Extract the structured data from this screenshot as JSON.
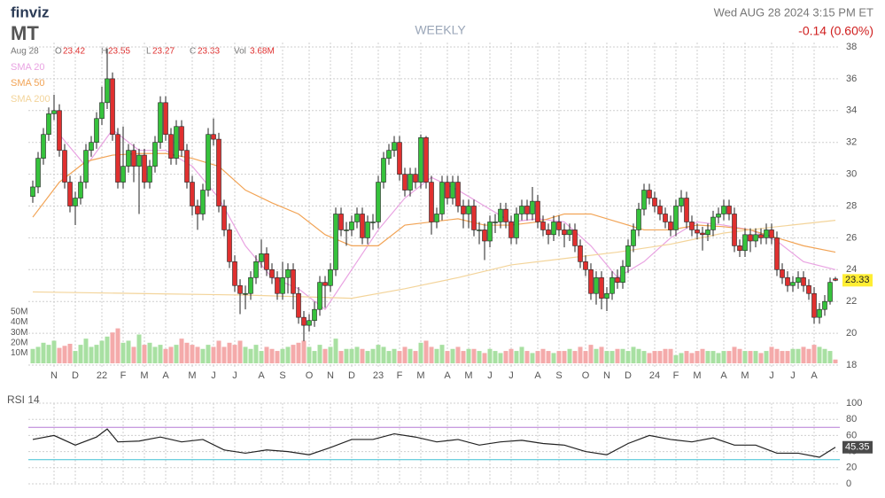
{
  "header": {
    "logo": "finviz",
    "ticker": "MT",
    "date": "Aug 28",
    "o": "O",
    "h": "H",
    "l": "L",
    "c": "C",
    "vol_label": "Vol",
    "vol": "3.68M",
    "timeframe": "WEEKLY",
    "datetime": "Wed AUG 28 2024 3:15 PM ET",
    "change": "-0.14 (0.60%)"
  },
  "chart_data": [
    {
      "type": "candlestick",
      "up_color": "#36c23c",
      "down_color": "#e0302f",
      "grid": true,
      "categories": [
        null,
        null,
        null,
        null,
        "N",
        null,
        null,
        null,
        "D",
        null,
        null,
        null,
        null,
        "22",
        null,
        null,
        null,
        "F",
        null,
        null,
        null,
        "M",
        null,
        null,
        null,
        "A",
        null,
        null,
        null,
        null,
        "M",
        null,
        null,
        null,
        "J",
        null,
        null,
        null,
        "J",
        null,
        null,
        null,
        null,
        "A",
        null,
        null,
        null,
        "S",
        null,
        null,
        null,
        null,
        "O",
        null,
        null,
        null,
        "N",
        null,
        null,
        null,
        "D",
        null,
        null,
        null,
        null,
        "23",
        null,
        null,
        null,
        "F",
        null,
        null,
        null,
        "M",
        null,
        null,
        null,
        null,
        "A",
        null,
        null,
        null,
        "M",
        null,
        null,
        null,
        "J",
        null,
        null,
        null,
        "J",
        null,
        null,
        null,
        null,
        "A",
        null,
        null,
        null,
        "S",
        null,
        null,
        null,
        null,
        "O",
        null,
        null,
        null,
        "N",
        null,
        null,
        null,
        "D",
        null,
        null,
        null,
        null,
        "24",
        null,
        null,
        null,
        "F",
        null,
        null,
        null,
        "M",
        null,
        null,
        null,
        null,
        "A",
        null,
        null,
        null,
        "M",
        null,
        null,
        null,
        null,
        "J",
        null,
        null,
        null,
        "J",
        null,
        null,
        null,
        "A",
        null,
        null,
        null,
        null
      ],
      "open": [
        28.6,
        29.2,
        31,
        32.5,
        33.8,
        34,
        31.5,
        29.5,
        28,
        28.5,
        29.5,
        31.5,
        32,
        33.5,
        34.5,
        36,
        32.5,
        29.5,
        30.5,
        31.5,
        30.5,
        31.2,
        29.5,
        30.5,
        32,
        34.5,
        32.5,
        31,
        33,
        31.5,
        29.5,
        28,
        27.5,
        29,
        32.5,
        32.2,
        28,
        26.5,
        24.5,
        23,
        22.5,
        22.5,
        23.5,
        24.5,
        25,
        24,
        23.5,
        22.5,
        23.5,
        24,
        22.5,
        21,
        20.5,
        20.8,
        21.5,
        23.2,
        23,
        24,
        27.5,
        26.5,
        26.5,
        27,
        27.5,
        26,
        27,
        27,
        29.5,
        31,
        31.5,
        32,
        30,
        29,
        30,
        29.5,
        32.3,
        29.5,
        27,
        27.5,
        29.5,
        28.5,
        29.5,
        28,
        27.5,
        28,
        26.5,
        26.5,
        25.8,
        27,
        27,
        27.8,
        27,
        26,
        27.5,
        28,
        27.5,
        28.3,
        27,
        26.5,
        26.2,
        27,
        26.5,
        26.2,
        26.5,
        25.5,
        24.5,
        24,
        22.5,
        23.5,
        22.2,
        22.5,
        23.5,
        23.2,
        24.2,
        25.5,
        26.5,
        27.8,
        29,
        28.5,
        28,
        27.5,
        27,
        26.5,
        28,
        28.5,
        27,
        26.5,
        26.3,
        26.2,
        26.5,
        27.3,
        27.5,
        28,
        27.5,
        25.5,
        25.2,
        26.2,
        25.8,
        26.2,
        26,
        26.5,
        26,
        24,
        23.5,
        23,
        23.2,
        23.5,
        23,
        22.5,
        21,
        21.5,
        22,
        23.42
      ],
      "high": [
        29.6,
        31.4,
        32.9,
        34.2,
        35,
        34.4,
        31.9,
        29.9,
        28.9,
        29.9,
        31.9,
        32.4,
        33.9,
        35.5,
        37.9,
        36.4,
        32.9,
        33,
        31.9,
        31.9,
        31.6,
        31.6,
        30.9,
        32.4,
        34.9,
        34.9,
        32.9,
        33.4,
        33.4,
        31.9,
        29.9,
        28.4,
        29.4,
        32.9,
        33.5,
        32.6,
        28.4,
        26.9,
        24.9,
        23.4,
        23,
        23.9,
        24.9,
        25.9,
        25.4,
        24.4,
        23.9,
        24.5,
        24.4,
        24.4,
        22.9,
        21.4,
        21.2,
        22,
        23.6,
        23.6,
        24.4,
        27.9,
        27.9,
        27,
        27.4,
        27.9,
        27.9,
        27.4,
        27.5,
        29.9,
        31.4,
        31.9,
        32.4,
        32.4,
        30.4,
        30.4,
        30.4,
        32.5,
        32.4,
        29.9,
        27.9,
        29.9,
        29.9,
        29.9,
        29.9,
        28.4,
        28.4,
        28.4,
        27,
        26.9,
        27.4,
        27.5,
        28.2,
        28.2,
        27.4,
        27.9,
        28.4,
        28.4,
        29.2,
        28.7,
        27.4,
        26.9,
        27.4,
        27.4,
        26.9,
        26.9,
        26.9,
        25.9,
        24.9,
        24.4,
        23.9,
        23.9,
        22.9,
        23.9,
        24,
        24.6,
        25.9,
        26.9,
        28.2,
        29.4,
        29.4,
        28.9,
        28.4,
        27.9,
        27.4,
        28.4,
        29,
        28.9,
        27.4,
        26.9,
        26.7,
        26.9,
        27.7,
        27.9,
        28.4,
        28.4,
        27.9,
        25.9,
        26.6,
        26.6,
        26.6,
        26.6,
        26.9,
        26.9,
        26.4,
        24.4,
        23.9,
        23.6,
        23.9,
        23.9,
        23.4,
        22.9,
        21.9,
        22.4,
        23.5,
        23.55
      ],
      "low": [
        28.2,
        28.8,
        30.6,
        32.1,
        33.4,
        31.1,
        29.1,
        27.6,
        26.8,
        28.1,
        29.1,
        31.1,
        31.6,
        33.1,
        34.1,
        32.1,
        29.1,
        29.1,
        30.1,
        29.5,
        27.5,
        29.1,
        29.1,
        30.1,
        31.6,
        32.1,
        30.6,
        30.6,
        31.1,
        29.1,
        27.4,
        26.5,
        27.1,
        28.6,
        31.8,
        27.6,
        26.1,
        24.1,
        22.6,
        21.2,
        21.5,
        22.1,
        23.1,
        24.1,
        23.6,
        23.1,
        22.1,
        22.1,
        22.5,
        21.5,
        20.6,
        19.5,
        20.1,
        20.4,
        21.1,
        21.6,
        22.6,
        23.6,
        26.1,
        25.5,
        26.1,
        26.6,
        25.6,
        25.6,
        26.5,
        26.6,
        29.1,
        30.6,
        31.1,
        29.6,
        28.6,
        28.6,
        29.1,
        29.1,
        29.1,
        26.2,
        26.6,
        27.1,
        28.1,
        28.1,
        27.6,
        26.6,
        26.6,
        26.1,
        25.6,
        24.6,
        25.4,
        26.3,
        26.6,
        26.6,
        25.6,
        25.6,
        27.1,
        27.1,
        27.1,
        26.6,
        26.1,
        25.6,
        25.8,
        26.1,
        25.4,
        25.8,
        25.1,
        24.1,
        23.6,
        22.1,
        21.8,
        21.5,
        21.4,
        22.1,
        22.8,
        22.8,
        23.8,
        25.1,
        26.1,
        27.4,
        28.1,
        27.6,
        27.1,
        26.6,
        26.1,
        26.1,
        27.6,
        26.6,
        26.1,
        25.9,
        25.2,
        25.8,
        26.1,
        26.9,
        27.1,
        27.1,
        25.1,
        24.8,
        24.8,
        25.1,
        25.4,
        25.6,
        25.6,
        25.6,
        23.6,
        23.1,
        22.6,
        22.6,
        22.8,
        22.6,
        22.1,
        20.6,
        20.6,
        21.1,
        21.8,
        23.27
      ],
      "close": [
        29.2,
        31,
        32.5,
        33.8,
        34,
        31.5,
        29.5,
        28,
        28.5,
        29.5,
        31.5,
        32,
        33.5,
        34.5,
        36,
        32.5,
        29.5,
        30.5,
        31.5,
        30.5,
        31.2,
        29.5,
        30.5,
        32,
        34.5,
        32.5,
        31,
        33,
        31.5,
        29.5,
        28,
        27.5,
        29,
        32.5,
        32.2,
        28,
        26.5,
        24.5,
        23,
        22.5,
        22.5,
        23.5,
        24.5,
        25,
        24,
        23.5,
        22.5,
        23.5,
        24,
        22.5,
        21,
        20.5,
        20.8,
        21.5,
        23.2,
        23,
        24,
        27.5,
        26.5,
        26.5,
        27,
        27.5,
        26,
        27,
        27,
        29.5,
        31,
        31.5,
        32,
        30,
        29,
        30,
        29.5,
        32.3,
        29.5,
        27,
        27.5,
        29.5,
        28.5,
        29.5,
        28,
        27.5,
        28,
        26.5,
        26.5,
        25.8,
        27,
        27,
        27.8,
        27,
        26,
        27.5,
        28,
        27.5,
        28.3,
        27,
        26.5,
        26.2,
        27,
        26.5,
        26.2,
        26.5,
        25.5,
        24.5,
        24,
        22.5,
        23.5,
        22.2,
        22.5,
        23.5,
        23.2,
        24.2,
        25.5,
        26.5,
        27.8,
        29,
        28.5,
        28,
        27.5,
        27,
        26.5,
        28,
        28.5,
        27,
        26.5,
        26.3,
        26.2,
        26.5,
        27.3,
        27.5,
        28,
        27.5,
        25.5,
        25.2,
        26.2,
        25.8,
        26.2,
        26,
        26.5,
        26,
        24,
        23.5,
        23,
        23.2,
        23.5,
        23,
        22.5,
        21,
        21.5,
        22,
        23.2,
        23.33
      ],
      "ylim": [
        18,
        38
      ],
      "yticks": [
        18,
        20,
        22,
        24,
        26,
        28,
        30,
        32,
        34,
        36,
        38
      ],
      "volume": {
        "up_color": "#a8e0a2",
        "down_color": "#f4aaaa",
        "ylim": [
          0,
          50
        ],
        "yticks": [
          {
            "value": 10,
            "label": "10M"
          },
          {
            "value": 20,
            "label": "20M"
          },
          {
            "value": 30,
            "label": "30M"
          },
          {
            "value": 40,
            "label": "40M"
          },
          {
            "value": 50,
            "label": "50M"
          }
        ],
        "values": [
          14,
          16,
          20,
          18,
          22,
          15,
          17,
          19,
          12,
          18,
          24,
          16,
          18,
          22,
          26,
          30,
          34,
          20,
          22,
          16,
          28,
          18,
          20,
          16,
          18,
          14,
          16,
          18,
          24,
          20,
          18,
          16,
          14,
          18,
          16,
          22,
          16,
          20,
          18,
          22,
          16,
          14,
          18,
          12,
          16,
          14,
          12,
          14,
          16,
          18,
          20,
          22,
          16,
          12,
          18,
          14,
          16,
          24,
          12,
          14,
          14,
          16,
          14,
          12,
          14,
          18,
          16,
          12,
          14,
          12,
          16,
          14,
          12,
          20,
          22,
          16,
          14,
          18,
          12,
          14,
          16,
          12,
          14,
          14,
          12,
          10,
          14,
          12,
          10,
          12,
          14,
          12,
          16,
          12,
          10,
          12,
          14,
          12,
          10,
          12,
          12,
          14,
          12,
          16,
          12,
          18,
          14,
          16,
          12,
          12,
          14,
          14,
          12,
          16,
          14,
          12,
          10,
          12,
          12,
          14,
          14,
          8,
          10,
          12,
          10,
          12,
          14,
          12,
          12,
          10,
          12,
          12,
          16,
          14,
          12,
          12,
          12,
          10,
          12,
          16,
          14,
          12,
          12,
          14,
          14,
          16,
          14,
          18,
          16,
          14,
          12,
          3.68
        ]
      },
      "series": [
        {
          "name": "SMA 20",
          "color": "#e9a3e2",
          "x": [
            5,
            10,
            15,
            20,
            25,
            30,
            35,
            40,
            45,
            50,
            55,
            60,
            65,
            70,
            75,
            80,
            85,
            90,
            95,
            100,
            105,
            110,
            115,
            120,
            125,
            130,
            135,
            140,
            145,
            151
          ],
          "values": [
            32.5,
            30.5,
            32.8,
            31.5,
            31.5,
            30.5,
            28.5,
            25.5,
            23.5,
            22.8,
            21.5,
            24,
            26.5,
            28.5,
            29.8,
            29,
            28,
            27,
            27.2,
            27,
            25.5,
            23.5,
            24.5,
            26,
            27,
            26.8,
            26.5,
            25.8,
            24.5,
            24
          ]
        },
        {
          "name": "SMA 50",
          "color": "#f2a456",
          "x": [
            0,
            5,
            10,
            15,
            20,
            25,
            30,
            35,
            40,
            45,
            50,
            55,
            60,
            65,
            70,
            75,
            80,
            85,
            90,
            95,
            100,
            105,
            110,
            115,
            120,
            125,
            130,
            135,
            140,
            145,
            151
          ],
          "values": [
            27.3,
            29.5,
            30.8,
            31.2,
            31.3,
            31.3,
            31,
            30.5,
            29,
            28.2,
            27.5,
            26.2,
            25.5,
            25.5,
            26.8,
            27,
            27.2,
            26.8,
            26.8,
            27,
            27.5,
            27.5,
            27,
            26.5,
            26.5,
            26.8,
            26.7,
            26.5,
            26,
            25.5,
            25.1
          ]
        },
        {
          "name": "SMA 200",
          "color": "#f3d49a",
          "x": [
            0,
            20,
            40,
            60,
            70,
            80,
            90,
            100,
            110,
            120,
            130,
            140,
            151
          ],
          "values": [
            22.6,
            22.5,
            22.4,
            22.2,
            22.8,
            23.5,
            24.3,
            24.7,
            25.1,
            25.6,
            26.3,
            26.7,
            27.1
          ]
        }
      ]
    },
    {
      "type": "line",
      "title": "RSI 14",
      "color": "#222222",
      "ylim": [
        0,
        100
      ],
      "yticks": [
        0,
        20,
        40,
        60,
        80,
        100
      ],
      "levels": [
        {
          "value": 70,
          "color": "#b57ad6"
        },
        {
          "value": 30,
          "color": "#3ebfd4"
        }
      ],
      "x": [
        0,
        4,
        8,
        12,
        14,
        16,
        20,
        24,
        28,
        32,
        36,
        40,
        44,
        48,
        52,
        56,
        60,
        64,
        68,
        72,
        76,
        80,
        84,
        88,
        92,
        96,
        100,
        104,
        108,
        112,
        116,
        120,
        124,
        128,
        132,
        136,
        140,
        144,
        148,
        151
      ],
      "values": [
        55,
        60,
        48,
        58,
        68,
        52,
        53,
        58,
        52,
        55,
        42,
        38,
        42,
        40,
        36,
        45,
        55,
        55,
        62,
        58,
        52,
        55,
        48,
        52,
        54,
        50,
        48,
        40,
        36,
        50,
        60,
        55,
        52,
        57,
        48,
        48,
        38,
        38,
        33,
        45.35
      ]
    }
  ]
}
